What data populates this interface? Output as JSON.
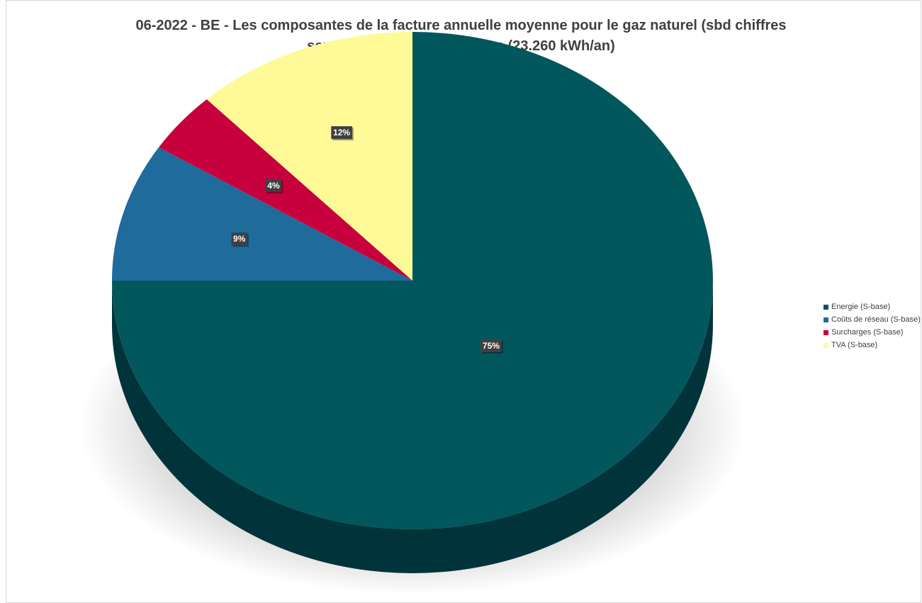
{
  "chart_data": {
    "type": "pie",
    "title_lines": [
      "06-2022 - BE - Les composantes de la facture annuelle moyenne pour le gaz naturel (sbd chiffres",
      "semestriels) pour un ménage (23.260 kWh/an)"
    ],
    "categories": [
      "Energie (S-base)",
      "Coûts de réseau (S-base)",
      "Surcharges (S-base)",
      "TVA (S-base)"
    ],
    "values": [
      75,
      9,
      4,
      12
    ],
    "data_labels": [
      "75%",
      "9%",
      "4%",
      "12%"
    ],
    "colors": [
      "#02575d",
      "#1f6b9b",
      "#c7003e",
      "#fefa98"
    ],
    "side_colors": [
      "#01343a",
      "#154a6b",
      "#7d0027",
      "#b9b66c"
    ],
    "legend_position": "right",
    "style": "3d-pie"
  }
}
